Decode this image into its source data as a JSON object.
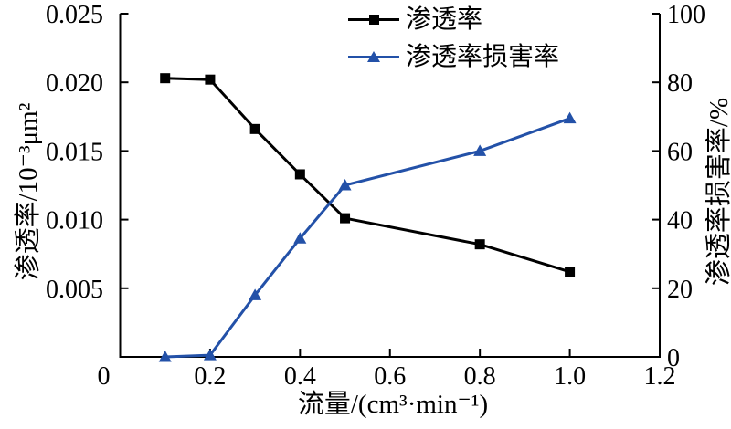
{
  "figure": {
    "background_color": "#ffffff",
    "axis_color": "#000000"
  },
  "legend": {
    "items": [
      {
        "label": "渗透率",
        "marker": "square",
        "color": "#000000"
      },
      {
        "label": "渗透率损害率",
        "marker": "triangle",
        "color": "#2351a8"
      }
    ]
  },
  "axes": {
    "x": {
      "title": "流量/(cm³·min⁻¹)",
      "tick_values": [
        0,
        0.2,
        0.4,
        0.6,
        0.8,
        1.0,
        1.2
      ],
      "tick_labels": [
        "0",
        "0.2",
        "0.4",
        "0.6",
        "0.8",
        "1.0",
        "1.2"
      ],
      "range": [
        0,
        1.2
      ]
    },
    "y_left": {
      "title": "渗透率/10⁻³μm²",
      "tick_values": [
        0.005,
        0.01,
        0.015,
        0.02,
        0.025
      ],
      "tick_labels": [
        "0.005",
        "0.010",
        "0.015",
        "0.020",
        "0.025"
      ],
      "range": [
        0,
        0.025
      ]
    },
    "y_right": {
      "title": "渗透率损害率/%",
      "tick_values": [
        0,
        20,
        40,
        60,
        80,
        100
      ],
      "tick_labels": [
        "0",
        "20",
        "40",
        "60",
        "80",
        "100"
      ],
      "range": [
        0,
        100
      ]
    }
  },
  "chart_data": {
    "type": "line",
    "title": "",
    "xlabel": "流量/(cm³·min⁻¹)",
    "ylabel_left": "渗透率/10⁻³μm²",
    "ylabel_right": "渗透率损害率/%",
    "xlim": [
      0,
      1.2
    ],
    "ylim_left": [
      0,
      0.025
    ],
    "ylim_right": [
      0,
      100
    ],
    "grid": false,
    "legend_position": "top-center-inside",
    "x": [
      0.1,
      0.2,
      0.3,
      0.4,
      0.5,
      0.8,
      1.0
    ],
    "series": [
      {
        "name": "渗透率",
        "y_axis": "left",
        "marker": "square",
        "color": "#000000",
        "values": [
          0.0203,
          0.0202,
          0.0166,
          0.0133,
          0.0101,
          0.0082,
          0.0062
        ]
      },
      {
        "name": "渗透率损害率",
        "y_axis": "right",
        "marker": "triangle",
        "color": "#2351a8",
        "values": [
          0,
          0.5,
          18,
          34.5,
          50,
          60,
          69.5
        ]
      }
    ]
  }
}
